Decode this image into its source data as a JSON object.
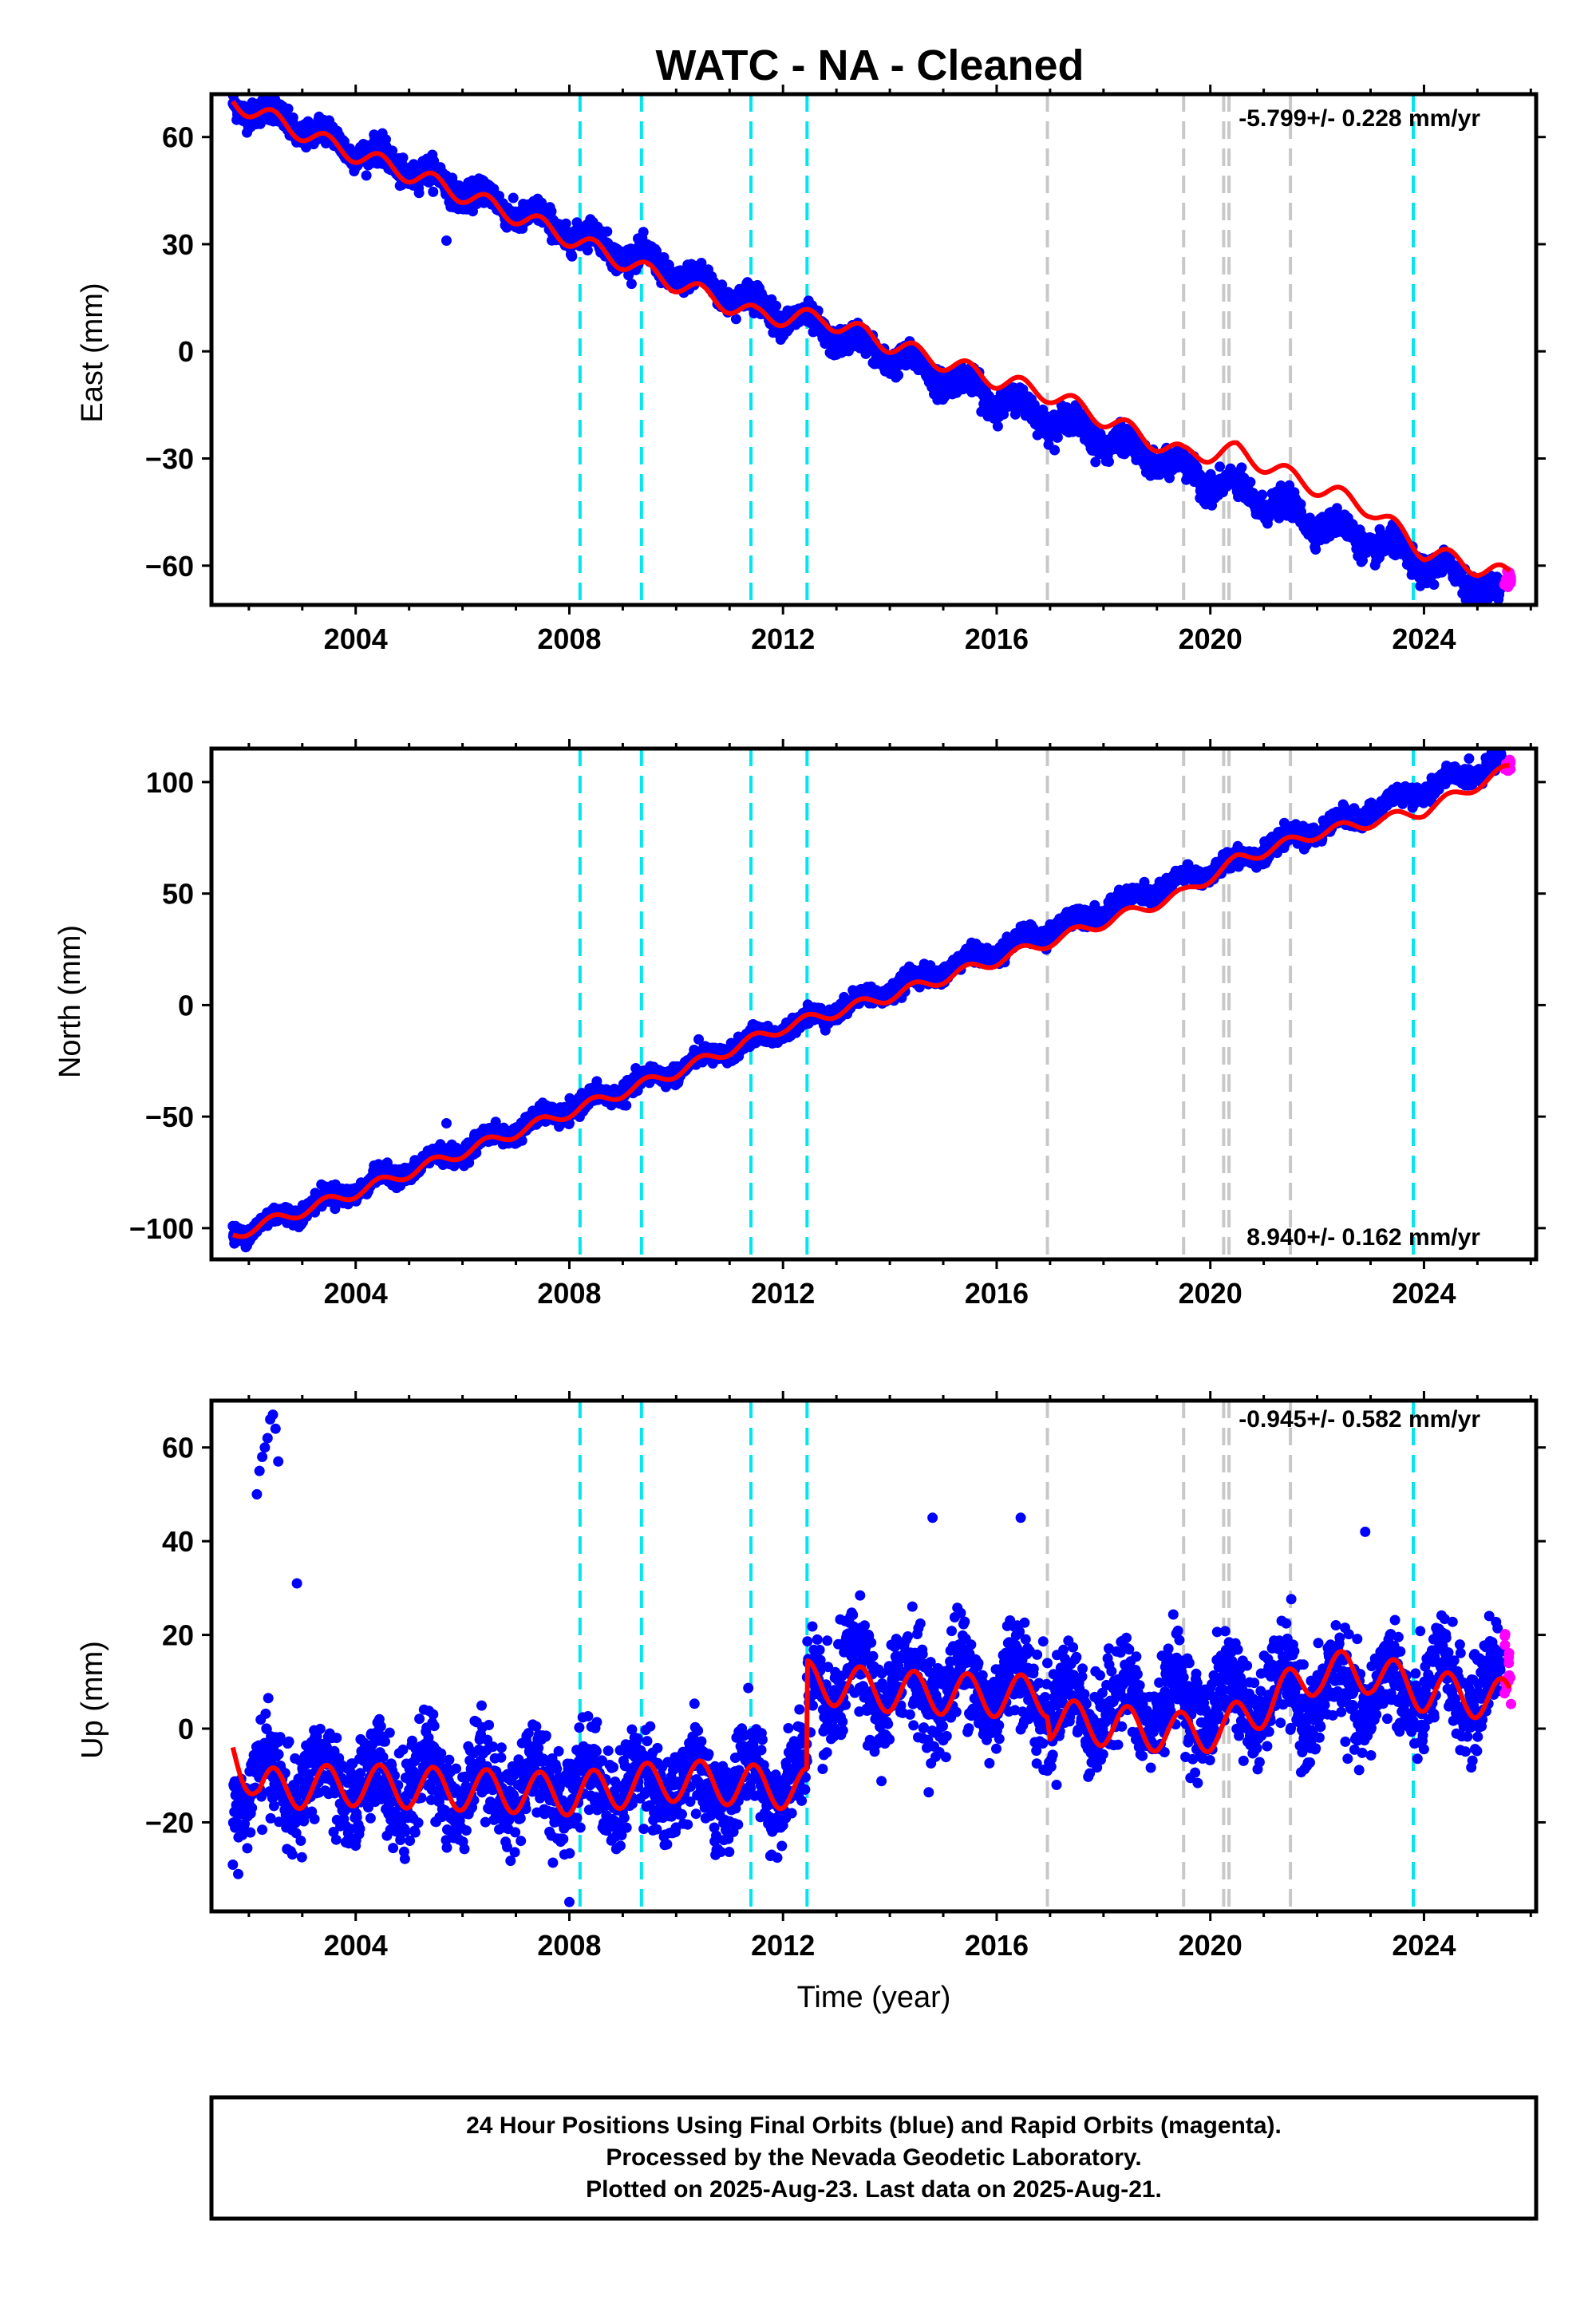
{
  "title": "WATC  - NA - Cleaned",
  "colors": {
    "final": "#0000ff",
    "rapid": "#ff00ff",
    "model": "#ff0000",
    "equipment": "#00e5ee",
    "earthquake": "#c8c8c8",
    "frame": "#000000"
  },
  "footer": {
    "line1": "24 Hour Positions Using Final Orbits (blue) and Rapid Orbits (magenta).",
    "line2": "Processed by the Nevada Geodetic Laboratory.",
    "line3": "Plotted on 2025-Aug-23. Last data on 2025-Aug-21."
  },
  "chart_data": [
    {
      "type": "scatter",
      "ylabel": "East (mm)",
      "xlabel": "",
      "xlim": [
        2001.3,
        2026.1
      ],
      "ylim": [
        -71,
        72
      ],
      "xticks": [
        2004,
        2008,
        2012,
        2016,
        2020,
        2024
      ],
      "yticks": [
        60,
        30,
        0,
        -30,
        -60
      ],
      "ytick_labels": [
        "60",
        "30",
        "0",
        "−30",
        "−60"
      ],
      "rate_text": "-5.799+/- 0.228 mm/yr",
      "rate_position": "top-right",
      "equipment_change_years": [
        2008.2,
        2009.35,
        2011.4,
        2012.45,
        2023.8
      ],
      "earthquake_years": [
        2016.95,
        2019.5,
        2020.25,
        2020.35,
        2021.5
      ],
      "trend": {
        "t0": 2001.7,
        "y0": 70,
        "rate": -5.8,
        "annual_amplitude": 2.5,
        "noise": 1.8
      },
      "model_points": [
        [
          2001.7,
          70
        ],
        [
          2003.5,
          58
        ],
        [
          2005.5,
          47
        ],
        [
          2007.5,
          35
        ],
        [
          2009.5,
          22
        ],
        [
          2011.5,
          10
        ],
        [
          2012.8,
          9
        ],
        [
          2014,
          2
        ],
        [
          2016,
          -8
        ],
        [
          2017,
          -12
        ],
        [
          2019.5,
          -29
        ],
        [
          2020.5,
          -28
        ],
        [
          2021.5,
          -35
        ],
        [
          2023,
          -44
        ],
        [
          2024,
          -56
        ],
        [
          2025.6,
          -63
        ]
      ],
      "rapid_range": [
        -66,
        -61
      ],
      "outliers": [
        [
          2005.7,
          31
        ]
      ]
    },
    {
      "type": "scatter",
      "ylabel": "North (mm)",
      "xlabel": "",
      "xlim": [
        2001.3,
        2026.1
      ],
      "ylim": [
        -114,
        115
      ],
      "xticks": [
        2004,
        2008,
        2012,
        2016,
        2020,
        2024
      ],
      "yticks": [
        100,
        50,
        0,
        -50,
        -100
      ],
      "ytick_labels": [
        "100",
        "50",
        "0",
        "−50",
        "−100"
      ],
      "rate_text": "8.940+/- 0.162 mm/yr",
      "rate_position": "bottom-right",
      "equipment_change_years": [
        2008.2,
        2009.35,
        2011.4,
        2012.45,
        2023.8
      ],
      "earthquake_years": [
        2016.95,
        2019.5,
        2020.25,
        2020.35,
        2021.5
      ],
      "trend": {
        "t0": 2001.7,
        "y0": -103,
        "rate": 8.94,
        "annual_amplitude": 2.5,
        "noise": 2.0
      },
      "model_points": [
        [
          2001.7,
          -103
        ],
        [
          2004,
          -84
        ],
        [
          2006,
          -66
        ],
        [
          2008,
          -48
        ],
        [
          2010,
          -30
        ],
        [
          2012,
          -10
        ],
        [
          2014,
          4
        ],
        [
          2016,
          20
        ],
        [
          2018,
          37
        ],
        [
          2019.5,
          50
        ],
        [
          2020.5,
          65
        ],
        [
          2022,
          77
        ],
        [
          2024,
          87
        ],
        [
          2025.6,
          106
        ]
      ],
      "rapid_range": [
        105,
        110
      ],
      "outliers": [
        [
          2005.7,
          -53
        ]
      ]
    },
    {
      "type": "scatter",
      "ylabel": "Up (mm)",
      "xlabel": "Time (year)",
      "xlim": [
        2001.3,
        2026.1
      ],
      "ylim": [
        -39,
        70
      ],
      "xticks": [
        2004,
        2008,
        2012,
        2016,
        2020,
        2024
      ],
      "yticks": [
        60,
        40,
        20,
        0,
        -20
      ],
      "ytick_labels": [
        "60",
        "40",
        "20",
        "0",
        "−20"
      ],
      "rate_text": "-0.945+/- 0.582 mm/yr",
      "rate_position": "top-right",
      "equipment_change_years": [
        2008.2,
        2009.35,
        2011.4,
        2012.45,
        2023.8
      ],
      "earthquake_years": [
        2016.95,
        2019.5,
        2020.25,
        2020.35,
        2021.5
      ],
      "segments": [
        {
          "start": 2001.7,
          "end": 2012.45,
          "mean": -12,
          "rate": 0.0,
          "annual_amplitude": 5.5,
          "noise": 5.0
        },
        {
          "start": 2012.45,
          "end": 2016.95,
          "mean": 9,
          "rate": 0.0,
          "annual_amplitude": 6.0,
          "noise": 5.5
        },
        {
          "start": 2016.95,
          "end": 2025.6,
          "mean": 4,
          "rate": 0.6,
          "annual_amplitude": 6.0,
          "noise": 5.0
        }
      ],
      "model_points": [
        [
          2001.7,
          -4
        ],
        [
          2002.2,
          -13
        ],
        [
          2004,
          -12
        ],
        [
          2006,
          -13
        ],
        [
          2008,
          -14
        ],
        [
          2010,
          -11
        ],
        [
          2012.44,
          -13
        ],
        [
          2012.46,
          10
        ],
        [
          2014,
          8
        ],
        [
          2016,
          7
        ],
        [
          2016.95,
          7
        ],
        [
          2017,
          2
        ],
        [
          2019.5,
          -1
        ],
        [
          2020.3,
          0
        ],
        [
          2022,
          12
        ],
        [
          2023,
          12
        ],
        [
          2024,
          8
        ],
        [
          2025.6,
          6
        ]
      ],
      "rapid_range": [
        5,
        22
      ],
      "outliers": [
        [
          2002.15,
          50
        ],
        [
          2002.2,
          55
        ],
        [
          2002.25,
          58
        ],
        [
          2002.3,
          60
        ],
        [
          2002.35,
          62
        ],
        [
          2002.4,
          66
        ],
        [
          2002.45,
          67
        ],
        [
          2002.5,
          64
        ],
        [
          2002.55,
          57
        ],
        [
          2002.9,
          31
        ],
        [
          2008.0,
          -37
        ],
        [
          2014.8,
          45
        ],
        [
          2016.45,
          45
        ],
        [
          2022.9,
          42
        ]
      ]
    }
  ]
}
